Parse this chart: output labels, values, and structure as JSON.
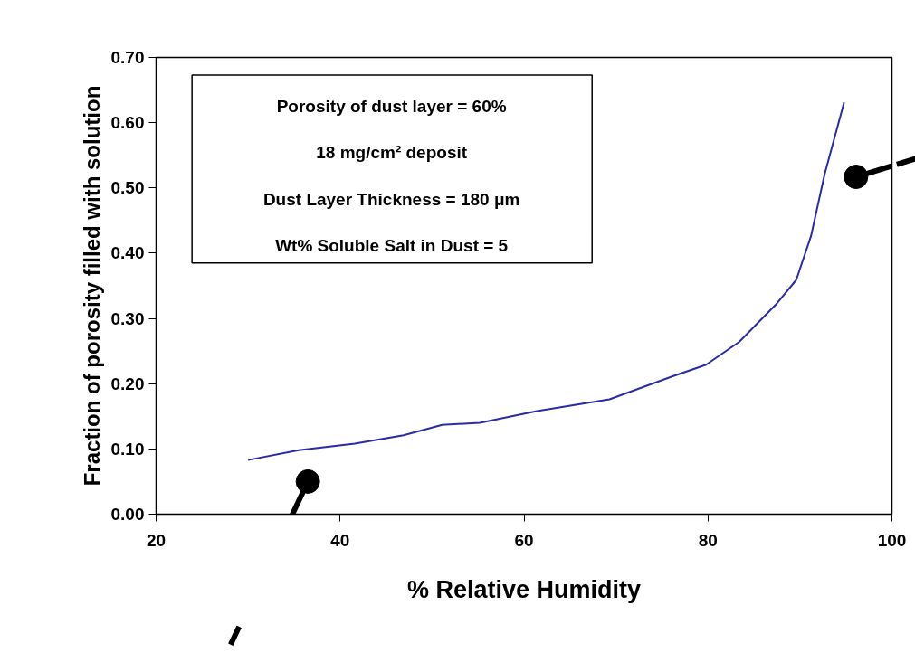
{
  "chart_data": {
    "type": "line",
    "xlabel": "% Relative Humidity",
    "ylabel": "Fraction of porosity filled with solution",
    "annotations": [
      "Porosity of dust layer = 60%",
      "18 mg/cm² deposit",
      "Dust Layer Thickness = 180 μm",
      "Wt% Soluble Salt in Dust = 5"
    ],
    "x": [
      30,
      35.5,
      41.6,
      46.9,
      51.1,
      55.2,
      61.4,
      69.3,
      76.1,
      79.8,
      83.4,
      87.5,
      89.6,
      91.2,
      92.7,
      94.8
    ],
    "series": [
      {
        "color": "#2b2ba8",
        "values": [
          0.083,
          0.098,
          0.108,
          0.121,
          0.137,
          0.14,
          0.158,
          0.176,
          0.211,
          0.229,
          0.264,
          0.323,
          0.359,
          0.426,
          0.522,
          0.631
        ]
      }
    ],
    "xlim": [
      20,
      100
    ],
    "xticks": [
      20,
      40,
      60,
      80,
      100
    ],
    "ylim": [
      0,
      0.7
    ],
    "yticks": [
      {
        "value": 0,
        "label": "0.00"
      },
      {
        "value": 0.1,
        "label": "0.10"
      },
      {
        "value": 0.2,
        "label": "0.20"
      },
      {
        "value": 0.3,
        "label": "0.30"
      },
      {
        "value": 0.4,
        "label": "0.40"
      },
      {
        "value": 0.5,
        "label": "0.50"
      },
      {
        "value": 0.6,
        "label": "0.60"
      },
      {
        "value": 0.7,
        "label": "0.70"
      }
    ],
    "grid": false,
    "marker": "none",
    "line_style": "solid"
  }
}
